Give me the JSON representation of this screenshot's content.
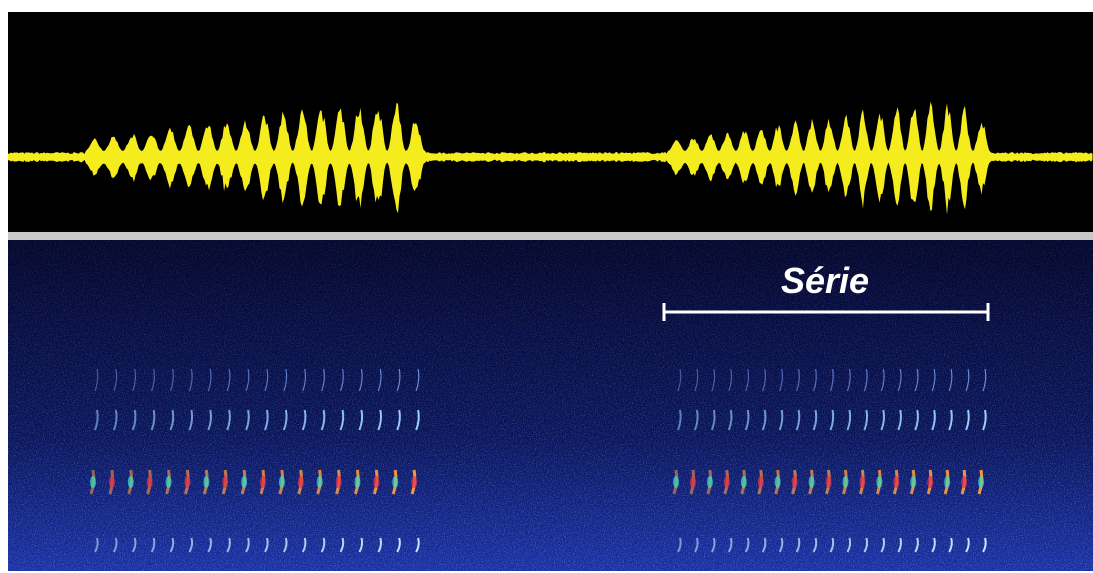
{
  "label": "Série"
}
